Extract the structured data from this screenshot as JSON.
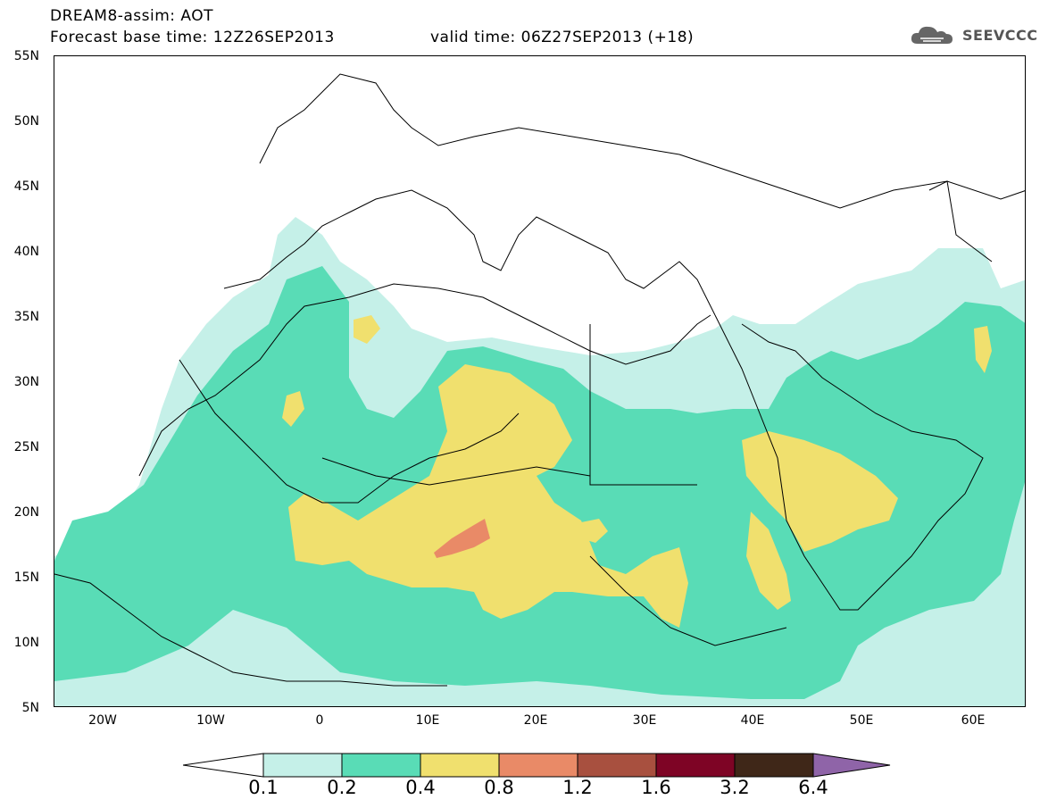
{
  "header": {
    "line1": "DREAM8-assim: AOT",
    "line2_left": "Forecast base time: 12Z26SEP2013",
    "line2_right": "valid time: 06Z27SEP2013 (+18)"
  },
  "logo": {
    "text": "SEEVCCC",
    "icon": "cloud-icon"
  },
  "map": {
    "lat_labels": [
      "55N",
      "50N",
      "45N",
      "40N",
      "35N",
      "30N",
      "25N",
      "20N",
      "15N",
      "10N",
      "5N"
    ],
    "lon_labels": [
      "20W",
      "10W",
      "0",
      "10E",
      "20E",
      "30E",
      "40E",
      "50E",
      "60E"
    ],
    "colors": {
      "c1": "#c5f0e8",
      "c2": "#59dcb6",
      "c3": "#f0e06e",
      "c4": "#e98a67",
      "c5": "#a8503f",
      "c6": "#7e0425",
      "c7": "#3f2718",
      "c8": "#8f64a8"
    }
  },
  "colorbar": {
    "labels": [
      "0.1",
      "0.2",
      "0.4",
      "0.8",
      "1.2",
      "1.6",
      "3.2",
      "6.4"
    ]
  }
}
